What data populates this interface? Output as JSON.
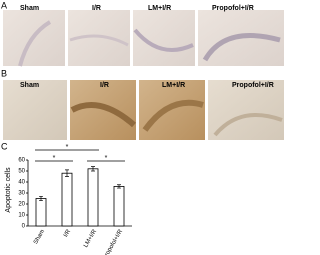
{
  "panel_a": {
    "letter": "A",
    "labels": [
      "Sham",
      "I/R",
      "LM+I/R",
      "Propofol+I/R"
    ]
  },
  "panel_b": {
    "letter": "B",
    "labels": [
      "Sham",
      "I/R",
      "LM+I/R",
      "Propofol+I/R"
    ]
  },
  "panel_c": {
    "letter": "C"
  },
  "chart_data": {
    "type": "bar",
    "y_label": "Apoptotic cells",
    "categories": [
      "Sham",
      "I/R",
      "LM+I/R",
      "Propofol+I/R"
    ],
    "values": [
      25,
      48,
      52,
      36
    ],
    "errors": [
      2,
      3,
      2,
      1.5
    ],
    "color": "#ffffff",
    "ylim": [
      0,
      60
    ],
    "yticks": [
      0,
      10,
      20,
      30,
      40,
      50,
      60
    ],
    "annotations": [
      "*",
      "*",
      "*"
    ]
  }
}
